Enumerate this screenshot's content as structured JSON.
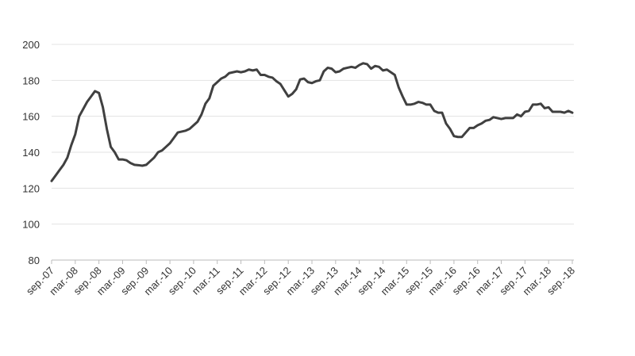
{
  "chart_data": {
    "type": "line",
    "categories": [
      "sep.-07",
      null,
      null,
      null,
      null,
      null,
      "mar.-08",
      null,
      null,
      null,
      null,
      null,
      "sep.-08",
      null,
      null,
      null,
      null,
      null,
      "mar.-09",
      null,
      null,
      null,
      null,
      null,
      "sep.-09",
      null,
      null,
      null,
      null,
      null,
      "mar.-10",
      null,
      null,
      null,
      null,
      null,
      "sep.-10",
      null,
      null,
      null,
      null,
      null,
      "mar.-11",
      null,
      null,
      null,
      null,
      null,
      "sep.-11",
      null,
      null,
      null,
      null,
      null,
      "mar.-12",
      null,
      null,
      null,
      null,
      null,
      "sep.-12",
      null,
      null,
      null,
      null,
      null,
      "mar.-13",
      null,
      null,
      null,
      null,
      null,
      "sep.-13",
      null,
      null,
      null,
      null,
      null,
      "mar.-14",
      null,
      null,
      null,
      null,
      null,
      "sep.-14",
      null,
      null,
      null,
      null,
      null,
      "mar.-15",
      null,
      null,
      null,
      null,
      null,
      "sep.-15",
      null,
      null,
      null,
      null,
      null,
      "mar.-16",
      null,
      null,
      null,
      null,
      null,
      "sep.-16",
      null,
      null,
      null,
      null,
      null,
      "mar.-17",
      null,
      null,
      null,
      null,
      null,
      "sep.-17",
      null,
      null,
      null,
      null,
      null,
      "mar.-18",
      null,
      null,
      null,
      null,
      null,
      "sep.-18"
    ],
    "values": [
      124,
      127,
      130,
      133,
      137,
      144,
      150,
      160,
      164,
      168,
      171,
      174,
      173,
      165,
      153,
      143,
      140,
      136,
      136,
      135.5,
      134,
      133,
      132.8,
      132.5,
      133,
      135,
      137,
      140,
      141,
      143,
      145,
      148,
      151,
      151.5,
      152,
      153,
      155,
      157,
      161,
      167,
      170,
      177,
      179,
      181,
      182,
      184,
      184.5,
      185,
      184.5,
      185,
      186,
      185.5,
      186,
      183,
      183,
      182,
      181.5,
      179.5,
      178,
      174.5,
      171,
      172.5,
      175,
      180.5,
      181,
      179,
      178.5,
      179.5,
      180,
      185,
      187,
      186.5,
      184.5,
      185,
      186.5,
      187,
      187.5,
      187,
      188.5,
      189.5,
      189,
      186.5,
      188,
      187.5,
      185.5,
      186,
      184.5,
      183,
      176,
      171,
      166.5,
      166.5,
      167,
      168,
      167.5,
      166.5,
      166.5,
      163,
      162,
      162,
      156,
      153,
      149,
      148.5,
      148.5,
      151,
      153.5,
      153.5,
      155,
      156,
      157.5,
      158,
      159.5,
      159,
      158.5,
      159,
      159,
      159,
      161,
      160,
      162.5,
      163,
      166.5,
      166.5,
      167,
      164.5,
      165,
      162.5,
      162.5,
      162.5,
      162,
      163,
      162
    ],
    "color": "#404040",
    "ylim": [
      80,
      200
    ],
    "yticks": [
      80,
      100,
      120,
      140,
      160,
      180,
      200
    ],
    "grid": true
  }
}
